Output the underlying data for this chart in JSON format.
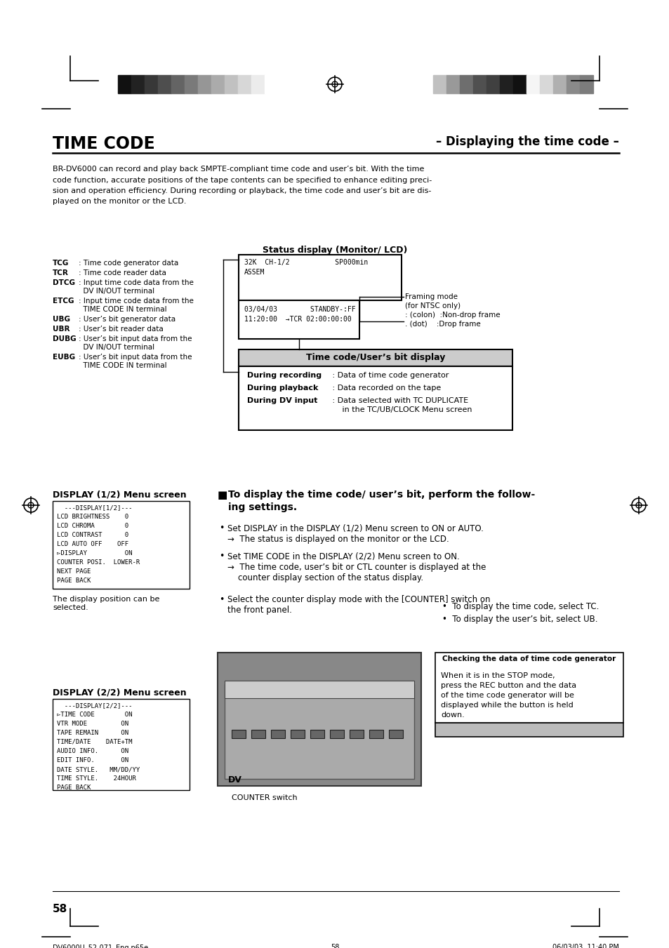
{
  "title_left": "TIME CODE",
  "title_right": "– Displaying the time code –",
  "intro_text": "BR-DV6000 can record and play back SMPTE-compliant time code and user’s bit. With the time\ncode function, accurate positions of the tape contents can be specified to enhance editing preci-\nsion and operation efficiency. During recording or playback, the time code and user’s bit are dis-\nplayed on the monitor or the LCD.",
  "status_display_title": "Status display (Monitor/ LCD)",
  "monitor_line1": "32K  CH-1/2           SP000min",
  "monitor_line2": "ASSEM",
  "monitor_line3": "03/04/03        STANDBY-:FF",
  "monitor_line4": "11:20:00  →TCR 02:00:00:00",
  "framing_label": "Framing mode",
  "framing_sub1": "(for NTSC only)",
  "framing_sub2": ": (colon)  :Non-drop frame",
  "framing_sub3": ". (dot)    :Drop frame",
  "left_labels": [
    [
      "TCG",
      ": Time code generator data",
      false
    ],
    [
      "TCR",
      ": Time code reader data",
      false
    ],
    [
      "DTCG",
      ": Input time code data from the",
      false
    ],
    [
      "",
      "  DV IN/OUT terminal",
      false
    ],
    [
      "ETCG",
      ": Input time code data from the",
      false
    ],
    [
      "",
      "  TIME CODE IN terminal",
      false
    ],
    [
      "UBG",
      ": User’s bit generator data",
      false
    ],
    [
      "UBR",
      ": User’s bit reader data",
      false
    ],
    [
      "DUBG",
      ": User’s bit input data from the",
      false
    ],
    [
      "",
      "  DV IN/OUT terminal",
      false
    ],
    [
      "EUBG",
      ": User’s bit input data from the",
      false
    ],
    [
      "",
      "  TIME CODE IN terminal",
      false
    ]
  ],
  "tc_box_title": "Time code/User’s bit display",
  "tc_rows": [
    [
      "During recording",
      " : Data of time code generator"
    ],
    [
      "During playback",
      " : Data recorded on the tape"
    ],
    [
      "During DV input",
      " : Data selected with TC DUPLICATE"
    ]
  ],
  "tc_row3_cont": "     in the TC/UB/CLOCK Menu screen",
  "display12_title": "DISPLAY (1/2) Menu screen",
  "display12_lines": [
    "  ---DISPLAY[1/2]---",
    "LCD BRIGHTNESS    0",
    "LCD CHROMA        0",
    "LCD CONTRAST      0",
    "LCD AUTO OFF    OFF",
    "▻DISPLAY          ON",
    "COUNTER POSI.  LOWER-R",
    "NEXT PAGE",
    "PAGE BACK"
  ],
  "display_pos_note": "The display position can be\nselected.",
  "display22_title": "DISPLAY (2/2) Menu screen",
  "display22_lines": [
    "  ---DISPLAY[2/2]---",
    "▻TIME CODE        ON",
    "VTR MODE         ON",
    "TAPE REMAIN      ON",
    "TIME/DATE    DATE+TM",
    "AUDIO INFO.      ON",
    "EDIT INFO.       ON",
    "DATE STYLE.   MM/DD/YY",
    "TIME STYLE.    24HOUR",
    "PAGE BACK"
  ],
  "instr_title_square": "■",
  "instr_title": "To display the time code/ user’s bit, perform the follow-\ning settings.",
  "bullet1_text": "Set DISPLAY in the DISPLAY (1/2) Menu screen to ON or AUTO.",
  "arrow1_text": "→  The status is displayed on the monitor or the LCD.",
  "bullet2_text": "Set TIME CODE in the DISPLAY (2/2) Menu screen to ON.",
  "arrow2_text": "→  The time code, user’s bit or CTL counter is displayed at the\n    counter display section of the status display.",
  "bullet3_text": "Select the counter display mode with the [COUNTER] switch on\nthe front panel.",
  "sub_bullet1": "To display the time code, select TC.",
  "sub_bullet2": "To display the user’s bit, select UB.",
  "checking_title": "Checking the data of time code generator",
  "checking_text": "When it is in the STOP mode,\npress the REC button and the data\nof the time code generator will be\ndisplayed while the button is held\ndown.",
  "counter_switch_label": "COUNTER switch",
  "page_num": "58",
  "footer_left": "DV6000U_52-071_Eng.p65e",
  "footer_center": "58",
  "footer_right": "06/03/03, 11:40 PM",
  "bar_colors_left": [
    "#111111",
    "#222222",
    "#383838",
    "#4e4e4e",
    "#646464",
    "#7a7a7a",
    "#969696",
    "#ababab",
    "#c1c1c1",
    "#d7d7d7",
    "#ececec",
    "#ffffff"
  ],
  "bar_colors_right": [
    "#c0c0c0",
    "#999999",
    "#6e6e6e",
    "#505050",
    "#404040",
    "#202020",
    "#111111",
    "#f5f5f5",
    "#d8d8d8",
    "#b0b0b0",
    "#8a8a8a",
    "#7c7c7c"
  ]
}
